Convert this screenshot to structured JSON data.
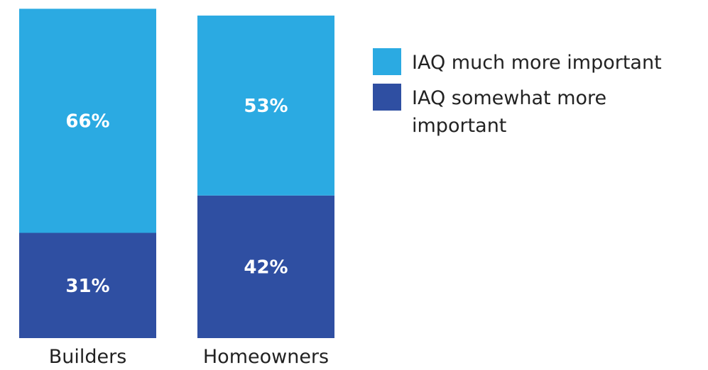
{
  "chart_data": {
    "type": "bar",
    "stacked": true,
    "categories": [
      "Builders",
      "Homeowners"
    ],
    "series": [
      {
        "name": "IAQ somewhat more important",
        "values": [
          31,
          42
        ],
        "labels": [
          "31%",
          "42%"
        ],
        "color": "#2F4FA2"
      },
      {
        "name": "IAQ much more important",
        "values": [
          66,
          53
        ],
        "labels": [
          "66%",
          "53%"
        ],
        "color": "#2BAAE2"
      }
    ],
    "legend": {
      "placement": "right",
      "entries": [
        {
          "series": 1,
          "lines": [
            "IAQ much more important"
          ]
        },
        {
          "series": 0,
          "lines": [
            "IAQ somewhat more",
            "important"
          ]
        }
      ]
    },
    "ylim": [
      0,
      100
    ],
    "grid": false,
    "title": "",
    "xlabel": "",
    "ylabel": ""
  }
}
